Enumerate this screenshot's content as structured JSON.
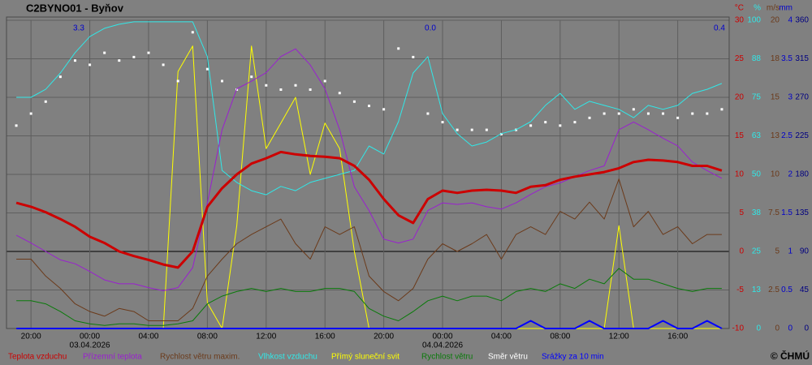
{
  "chart_data": {
    "type": "line",
    "title": "C2BYNO01 - Byňov",
    "credit": "© ČHMÚ",
    "x": [
      "2026-04-02T19:00",
      "2026-04-02T20:00",
      "2026-04-02T21:00",
      "2026-04-02T22:00",
      "2026-04-02T23:00",
      "2026-04-03T00:00",
      "2026-04-03T01:00",
      "2026-04-03T02:00",
      "2026-04-03T03:00",
      "2026-04-03T04:00",
      "2026-04-03T05:00",
      "2026-04-03T06:00",
      "2026-04-03T07:00",
      "2026-04-03T08:00",
      "2026-04-03T09:00",
      "2026-04-03T10:00",
      "2026-04-03T11:00",
      "2026-04-03T12:00",
      "2026-04-03T13:00",
      "2026-04-03T14:00",
      "2026-04-03T15:00",
      "2026-04-03T16:00",
      "2026-04-03T17:00",
      "2026-04-03T18:00",
      "2026-04-03T19:00",
      "2026-04-03T20:00",
      "2026-04-03T21:00",
      "2026-04-03T22:00",
      "2026-04-03T23:00",
      "2026-04-04T00:00",
      "2026-04-04T01:00",
      "2026-04-04T02:00",
      "2026-04-04T03:00",
      "2026-04-04T04:00",
      "2026-04-04T05:00",
      "2026-04-04T06:00",
      "2026-04-04T07:00",
      "2026-04-04T08:00",
      "2026-04-04T09:00",
      "2026-04-04T10:00",
      "2026-04-04T11:00",
      "2026-04-04T12:00",
      "2026-04-04T13:00",
      "2026-04-04T14:00",
      "2026-04-04T15:00",
      "2026-04-04T16:00",
      "2026-04-04T17:00",
      "2026-04-04T18:00",
      "2026-04-04T19:00"
    ],
    "xlim": [
      "2026-04-02T18:20",
      "2026-04-04T19:30"
    ],
    "xticks": [
      {
        "value": "2026-04-02T20:00",
        "label": "20:00"
      },
      {
        "value": "2026-04-03T00:00",
        "label": "00:00"
      },
      {
        "value": "2026-04-03T04:00",
        "label": "04:00"
      },
      {
        "value": "2026-04-03T08:00",
        "label": "08:00"
      },
      {
        "value": "2026-04-03T12:00",
        "label": "12:00"
      },
      {
        "value": "2026-04-03T16:00",
        "label": "16:00"
      },
      {
        "value": "2026-04-03T20:00",
        "label": "20:00"
      },
      {
        "value": "2026-04-04T00:00",
        "label": "00:00"
      },
      {
        "value": "2026-04-04T04:00",
        "label": "04:00"
      },
      {
        "value": "2026-04-04T08:00",
        "label": "08:00"
      },
      {
        "value": "2026-04-04T12:00",
        "label": "12:00"
      },
      {
        "value": "2026-04-04T16:00",
        "label": "16:00"
      }
    ],
    "xdate_labels": [
      {
        "value": "2026-04-03T00:00",
        "label": "03.04.2026"
      },
      {
        "value": "2026-04-04T00:00",
        "label": "04.04.2026"
      }
    ],
    "grid": true,
    "ylabel": "°C",
    "ylim": [
      -10,
      30
    ],
    "yticks": [
      30,
      25,
      20,
      15,
      10,
      5,
      0,
      -5,
      -10
    ],
    "ycolor": "#cc0000",
    "y2label": "%",
    "y2lim": [
      0,
      100
    ],
    "y2ticks": [
      100,
      {
        "value": 87.5,
        "label": "88"
      },
      75,
      {
        "value": 62.5,
        "label": "63"
      },
      50,
      {
        "value": 37.5,
        "label": "38"
      },
      25,
      {
        "value": 12.5,
        "label": "13"
      },
      0
    ],
    "y2color": "#30e8e8",
    "y3label": "m/s",
    "y3lim": [
      0,
      20
    ],
    "y3ticks": [
      20,
      {
        "value": 17.5,
        "label": "18"
      },
      15,
      {
        "value": 12.5,
        "label": "13"
      },
      10,
      7.5,
      5,
      2.5,
      0
    ],
    "y3color": "#6b3a1a",
    "y4label": "mm",
    "y4lim": [
      0,
      4
    ],
    "y4ticks": [
      4,
      3.5,
      3,
      2.5,
      2,
      1.5,
      1,
      0.5,
      0
    ],
    "y4color": "#0000cc",
    "y5lim": [
      0,
      360
    ],
    "y5ticks": [
      360,
      315,
      270,
      225,
      180,
      135,
      90,
      45,
      0
    ],
    "y5color": "#000080",
    "y6lim": [
      0,
      60
    ],
    "annotations": [
      "3.3",
      "0.0",
      "0.4"
    ],
    "series": [
      {
        "name": "Teplota vzduchu",
        "color": "#cc0000",
        "axis": "y",
        "values": [
          6.3,
          5.8,
          5.1,
          4.2,
          3.2,
          1.9,
          1.1,
          0,
          -0.6,
          -1.1,
          -1.7,
          -2.1,
          0,
          5.8,
          8.2,
          10.0,
          11.4,
          12.1,
          12.9,
          12.6,
          12.4,
          12.3,
          12.1,
          11.1,
          9.3,
          6.8,
          4.7,
          3.7,
          6.8,
          7.9,
          7.6,
          7.9,
          8.0,
          7.9,
          7.6,
          8.4,
          8.6,
          9.3,
          9.7,
          10.0,
          10.3,
          10.8,
          11.6,
          11.9,
          11.8,
          11.6,
          11.1,
          11.1,
          10.5
        ]
      },
      {
        "name": "Přízemní teplota",
        "color": "#9a1fd0",
        "axis": "y",
        "values": [
          2.1,
          1.1,
          0,
          -1.1,
          -1.6,
          -2.6,
          -3.7,
          -4.2,
          -4.2,
          -4.7,
          -5.1,
          -4.7,
          -2.1,
          6.3,
          15.8,
          21.1,
          22.1,
          23.2,
          25.3,
          26.3,
          24.2,
          21.1,
          15.8,
          8.4,
          5.3,
          1.6,
          1.1,
          1.6,
          5.3,
          6.3,
          6.1,
          6.3,
          5.8,
          5.5,
          6.3,
          7.4,
          8.4,
          8.9,
          9.7,
          10.5,
          11.1,
          15.8,
          16.8,
          15.8,
          14.7,
          13.7,
          11.6,
          10.5,
          9.5
        ]
      },
      {
        "name": "Rychlost větru maxim.",
        "color": "#6b3a1a",
        "axis": "y3",
        "values": [
          4.5,
          4.5,
          3.4,
          2.6,
          1.6,
          1.1,
          0.8,
          1.3,
          1.1,
          0.5,
          0.5,
          0.5,
          1.3,
          3.4,
          4.5,
          5.5,
          6.1,
          6.6,
          7.1,
          5.5,
          4.5,
          6.6,
          6.1,
          6.6,
          3.4,
          2.4,
          1.8,
          2.6,
          4.5,
          5.5,
          5.0,
          5.5,
          6.1,
          4.5,
          6.1,
          6.6,
          6.1,
          7.6,
          7.1,
          8.2,
          7.1,
          9.7,
          6.6,
          7.6,
          6.1,
          6.6,
          5.5,
          6.1,
          6.1
        ]
      },
      {
        "name": "Vlhkost vzduchu",
        "color": "#30e8e8",
        "axis": "y2",
        "values": [
          75.0,
          75.0,
          77.6,
          82.9,
          89.5,
          94.7,
          97.4,
          98.7,
          99.5,
          99.5,
          99.5,
          99.5,
          99.5,
          88.2,
          51.3,
          47.4,
          44.7,
          43.4,
          46.1,
          44.7,
          47.4,
          48.7,
          50.0,
          51.3,
          59.2,
          56.6,
          67.1,
          82.9,
          88.2,
          69.7,
          63.2,
          59.2,
          60.5,
          63.2,
          64.5,
          67.1,
          72.4,
          76.3,
          71.1,
          73.7,
          72.4,
          71.1,
          68.4,
          72.4,
          71.1,
          72.4,
          76.3,
          77.6,
          79.5
        ]
      },
      {
        "name": "Přímý sluneční svit",
        "color": "#ffff00",
        "axis": "y6",
        "values": [
          0,
          0,
          0,
          0,
          0,
          0,
          0,
          0,
          0,
          0,
          0,
          50,
          55,
          5,
          0,
          20,
          55,
          35,
          40,
          45,
          30,
          40,
          35,
          15,
          0,
          0,
          0,
          0,
          0,
          0,
          0,
          0,
          0,
          0,
          0,
          0,
          0,
          0,
          0,
          0,
          0,
          20,
          0,
          0,
          0,
          0,
          0,
          0,
          0
        ]
      },
      {
        "name": "Rychlost větru",
        "color": "#0a7a0a",
        "axis": "y3",
        "values": [
          1.8,
          1.8,
          1.6,
          1.1,
          0.5,
          0.3,
          0.2,
          0.3,
          0.3,
          0.2,
          0.2,
          0.3,
          0.5,
          1.6,
          2.1,
          2.4,
          2.6,
          2.4,
          2.6,
          2.4,
          2.4,
          2.6,
          2.6,
          2.4,
          1.3,
          0.8,
          0.5,
          1.1,
          1.8,
          2.1,
          1.8,
          2.1,
          2.1,
          1.8,
          2.4,
          2.6,
          2.4,
          2.9,
          2.6,
          3.2,
          2.9,
          3.9,
          3.2,
          3.2,
          2.9,
          2.6,
          2.4,
          2.6,
          2.6
        ]
      },
      {
        "name": "Směr větru",
        "color": "#ffffff",
        "axis": "y5",
        "marker": "dots",
        "values": [
          237,
          251,
          265,
          294,
          313,
          308,
          322,
          313,
          317,
          322,
          308,
          289,
          346,
          303,
          289,
          279,
          294,
          284,
          279,
          284,
          279,
          289,
          275,
          265,
          260,
          256,
          327,
          317,
          251,
          241,
          232,
          232,
          232,
          227,
          232,
          237,
          241,
          237,
          241,
          246,
          251,
          251,
          256,
          251,
          251,
          246,
          251,
          251,
          256
        ]
      },
      {
        "name": "Srážky za 10 min",
        "color": "#0000ff",
        "axis": "y4",
        "values": [
          0,
          0,
          0,
          0,
          0,
          0,
          0,
          0,
          0,
          0,
          0,
          0,
          0,
          0,
          0,
          0,
          0,
          0,
          0,
          0,
          0,
          0,
          0,
          0,
          0,
          0,
          0,
          0,
          0,
          0,
          0,
          0,
          0,
          0,
          0,
          0.1,
          0,
          0,
          0,
          0.1,
          0,
          0,
          0,
          0,
          0.1,
          0,
          0,
          0.1,
          0
        ]
      }
    ]
  }
}
